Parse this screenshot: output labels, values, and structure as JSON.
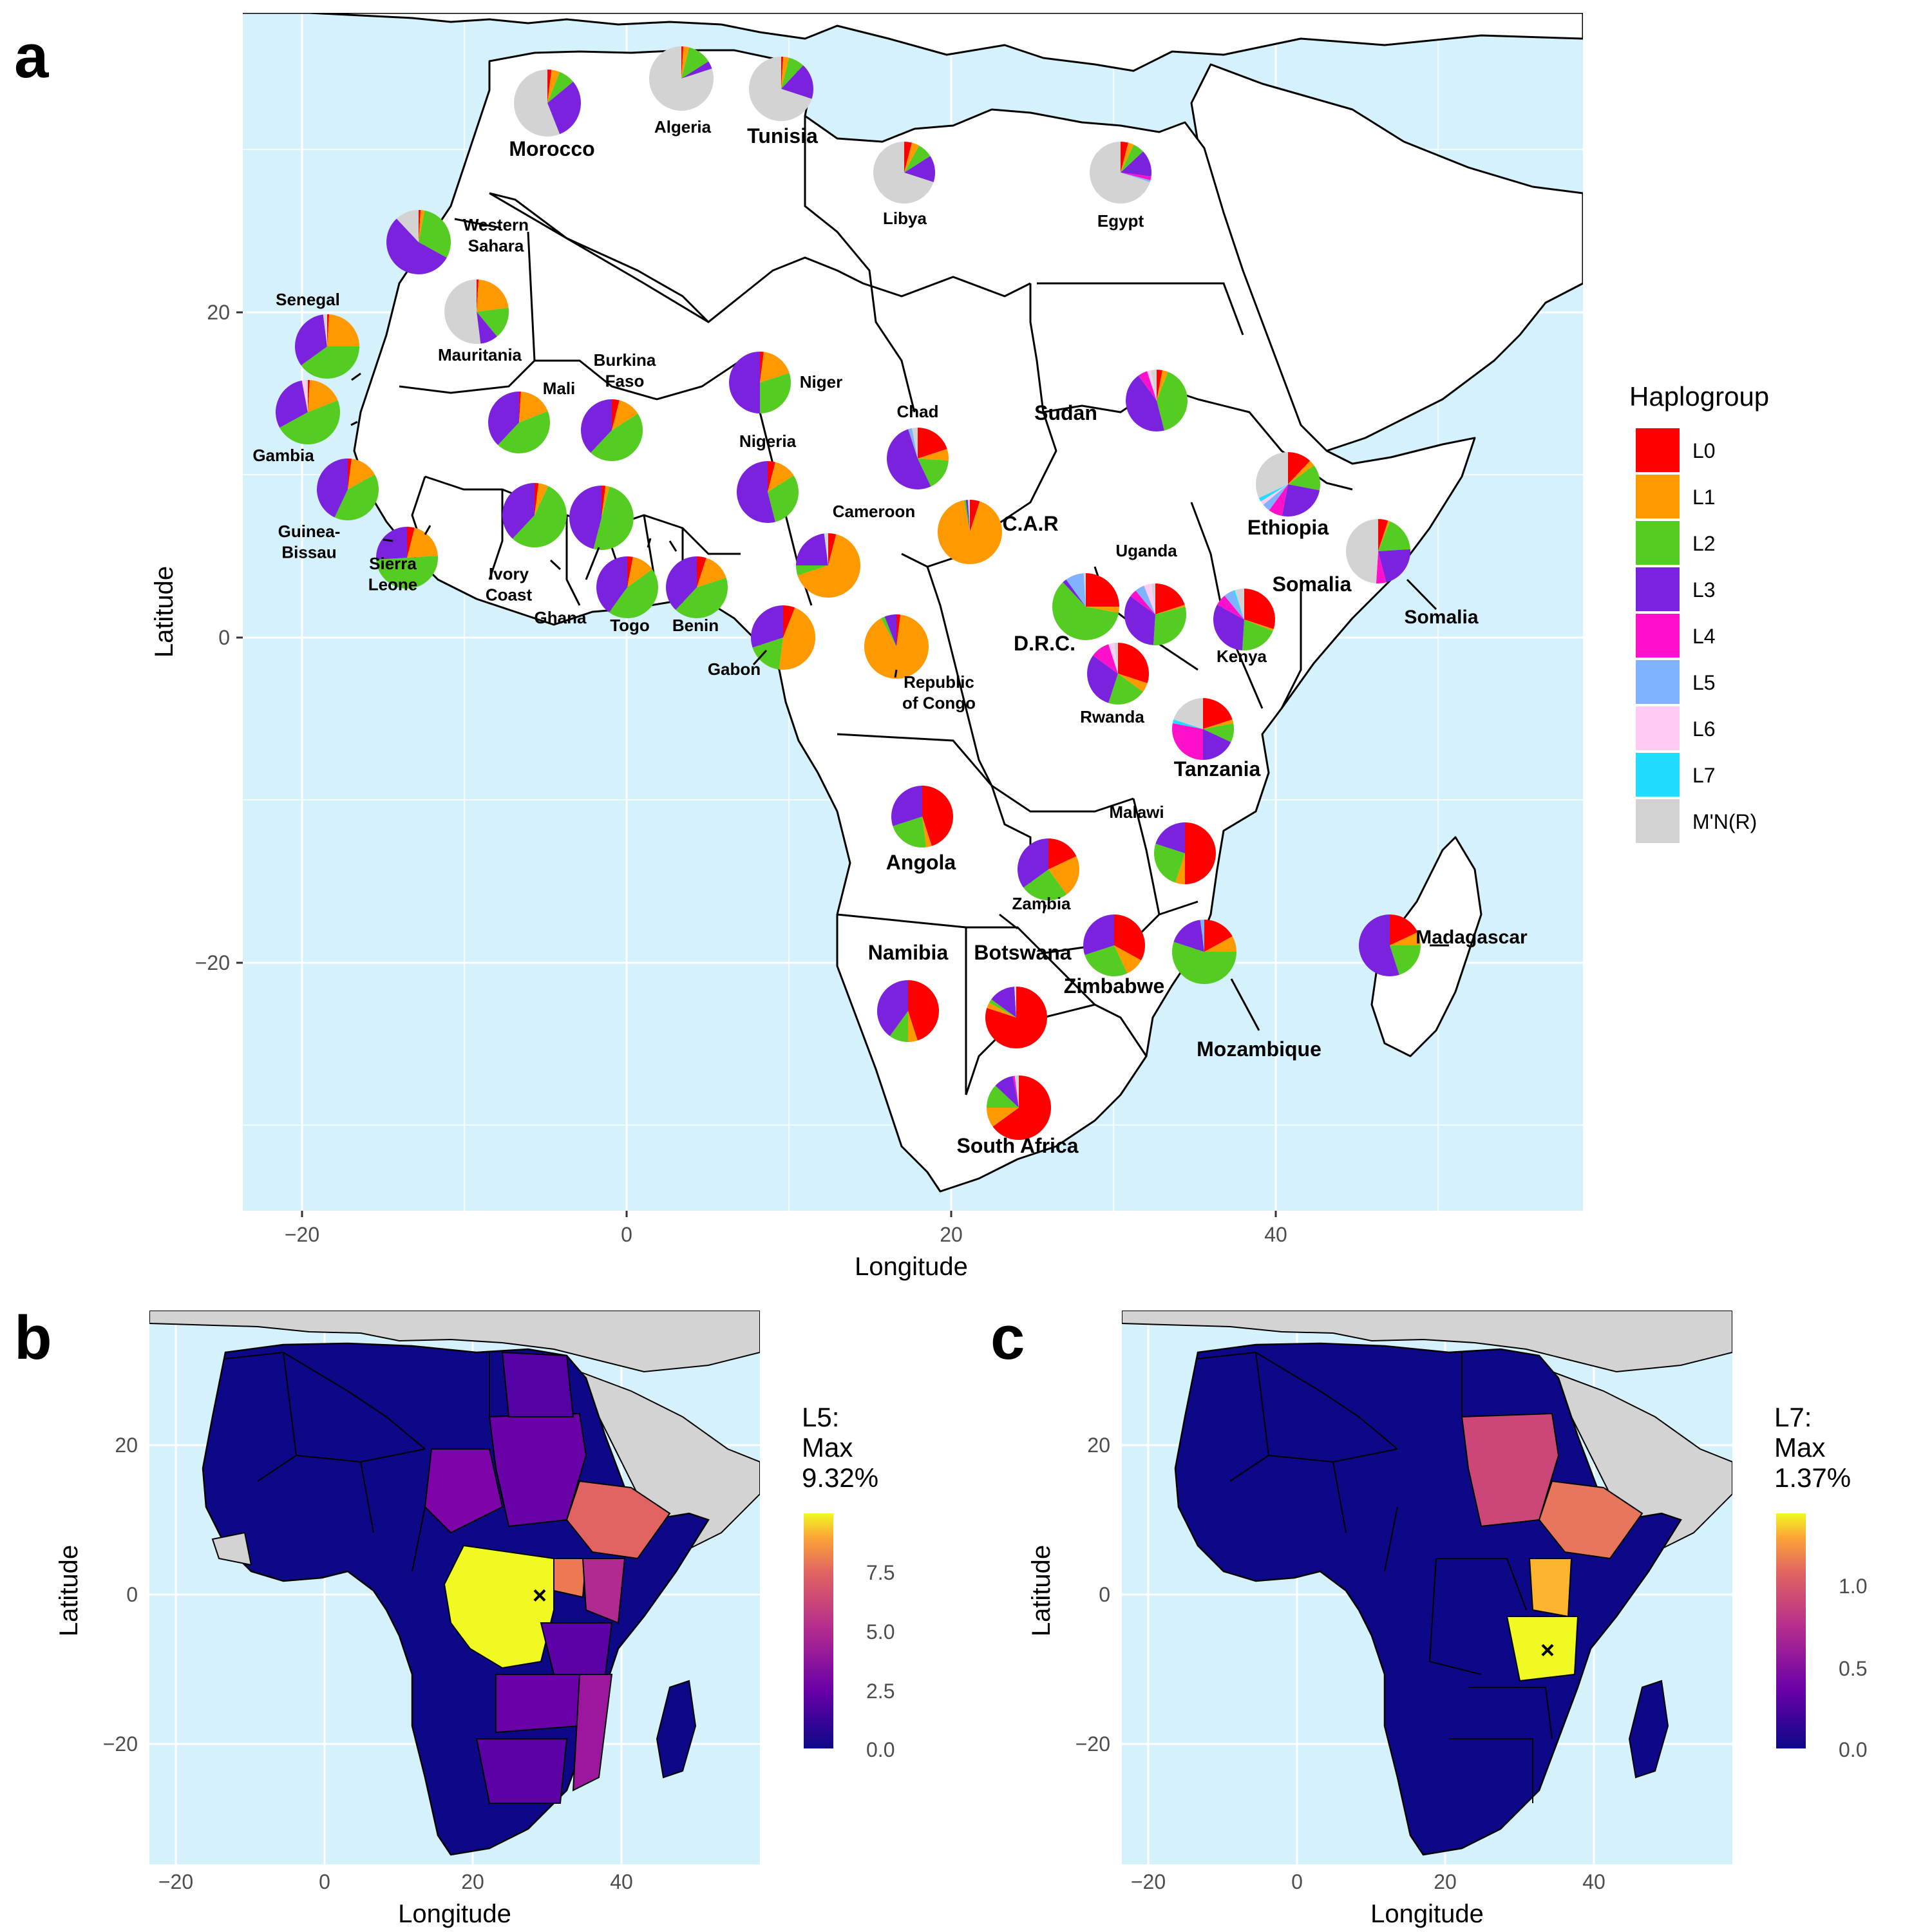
{
  "panels": {
    "a": {
      "letter": "a",
      "xlabel": "Longitude",
      "ylabel": "Latitude",
      "xticks": [
        "−20",
        "0",
        "20",
        "40"
      ],
      "yticks": [
        "20",
        "0",
        "−20"
      ]
    },
    "b": {
      "letter": "b",
      "xlabel": "Longitude",
      "ylabel": "Latitude",
      "xticks": [
        "−20",
        "0",
        "20",
        "40"
      ],
      "yticks": [
        "20",
        "0",
        "−20"
      ],
      "scale_title": [
        "L5:",
        "Max",
        "9.32%"
      ],
      "scale_ticks": [
        "7.5",
        "5.0",
        "2.5",
        "0.0"
      ],
      "max": 9.32
    },
    "c": {
      "letter": "c",
      "xlabel": "Longitude",
      "ylabel": "Latitude",
      "xticks": [
        "−20",
        "0",
        "20",
        "40"
      ],
      "yticks": [
        "20",
        "0",
        "−20"
      ],
      "scale_title": [
        "L7:",
        "Max",
        "1.37%"
      ],
      "scale_ticks": [
        "1.0",
        "0.5",
        "0.0"
      ],
      "max": 1.37
    }
  },
  "legend": {
    "title": "Haplogroup",
    "items": [
      {
        "label": "L0",
        "color": "#ff0000"
      },
      {
        "label": "L1",
        "color": "#ff9900"
      },
      {
        "label": "L2",
        "color": "#55cc22"
      },
      {
        "label": "L3",
        "color": "#7a22dd"
      },
      {
        "label": "L4",
        "color": "#ff11cc"
      },
      {
        "label": "L5",
        "color": "#80b3ff"
      },
      {
        "label": "L6",
        "color": "#ffccf5"
      },
      {
        "label": "L7",
        "color": "#22ddff"
      },
      {
        "label": "M'N(R)",
        "color": "#d3d3d3"
      }
    ]
  },
  "colors": {
    "ocean": "#d5f1fb",
    "land": "#ffffff",
    "nodata": "#d3d3d3"
  },
  "chart_data": {
    "type": "pie",
    "x_axis": "Longitude",
    "y_axis": "Latitude",
    "series_order": [
      "L0",
      "L1",
      "L2",
      "L3",
      "L4",
      "L5",
      "L6",
      "L7",
      "M'N(R)"
    ],
    "countries": [
      {
        "name": "Morocco",
        "lon": -4,
        "lat": 32,
        "fractions": [
          0.02,
          0.04,
          0.08,
          0.3,
          0,
          0,
          0,
          0,
          0.56
        ]
      },
      {
        "name": "Algeria",
        "lon": 3.5,
        "lat": 34.5,
        "fractions": [
          0.01,
          0.03,
          0.12,
          0.04,
          0,
          0,
          0,
          0,
          0.8
        ]
      },
      {
        "name": "Tunisia",
        "lon": 10,
        "lat": 34,
        "fractions": [
          0.01,
          0.03,
          0.08,
          0.18,
          0,
          0,
          0,
          0,
          0.7
        ]
      },
      {
        "name": "Libya",
        "lon": 17,
        "lat": 28,
        "fractions": [
          0.04,
          0.04,
          0.08,
          0.14,
          0,
          0,
          0,
          0,
          0.7
        ]
      },
      {
        "name": "Egypt",
        "lon": 30,
        "lat": 28,
        "fractions": [
          0.04,
          0.03,
          0.06,
          0.14,
          0.02,
          0.01,
          0,
          0,
          0.7
        ]
      },
      {
        "name": "Western Sahara",
        "lon": -13,
        "lat": 24.5,
        "fractions": [
          0.01,
          0.02,
          0.3,
          0.55,
          0,
          0,
          0,
          0,
          0.12
        ]
      },
      {
        "name": "Mauritania",
        "lon": -10,
        "lat": 20,
        "fractions": [
          0.01,
          0.22,
          0.16,
          0.09,
          0,
          0,
          0,
          0,
          0.52
        ]
      },
      {
        "name": "Senegal",
        "lon": -18.5,
        "lat": 18,
        "fractions": [
          0.01,
          0.24,
          0.4,
          0.33,
          0,
          0,
          0,
          0,
          0.02
        ]
      },
      {
        "name": "Mali",
        "lon": -6.5,
        "lat": 13.5,
        "fractions": [
          0.01,
          0.18,
          0.43,
          0.38,
          0,
          0,
          0,
          0,
          0
        ]
      },
      {
        "name": "Burkina Faso",
        "lon": -1,
        "lat": 13,
        "fractions": [
          0.04,
          0.12,
          0.46,
          0.38,
          0,
          0,
          0,
          0,
          0
        ]
      },
      {
        "name": "Niger",
        "lon": 8,
        "lat": 16,
        "fractions": [
          0.02,
          0.18,
          0.3,
          0.5,
          0,
          0,
          0,
          0,
          0
        ]
      },
      {
        "name": "Gambia",
        "lon": -19,
        "lat": 14,
        "fractions": [
          0.01,
          0.18,
          0.48,
          0.3,
          0,
          0,
          0.02,
          0,
          0.01
        ]
      },
      {
        "name": "Guinea-Bissau",
        "lon": -17,
        "lat": 9.5,
        "fractions": [
          0.02,
          0.15,
          0.4,
          0.43,
          0,
          0,
          0,
          0,
          0
        ]
      },
      {
        "name": "Sierra Leone",
        "lon": -13.5,
        "lat": 4.5,
        "fractions": [
          0.04,
          0.2,
          0.5,
          0.26,
          0,
          0,
          0,
          0,
          0
        ]
      },
      {
        "name": "Ivory Coast",
        "lon": -5.5,
        "lat": 7.5,
        "fractions": [
          0.02,
          0.05,
          0.55,
          0.38,
          0,
          0,
          0,
          0,
          0
        ]
      },
      {
        "name": "Ghana",
        "lon": -1.5,
        "lat": 7.5,
        "fractions": [
          0.02,
          0.02,
          0.5,
          0.46,
          0,
          0,
          0,
          0,
          0
        ]
      },
      {
        "name": "Togo",
        "lon": 0,
        "lat": 3,
        "fractions": [
          0.03,
          0.12,
          0.45,
          0.4,
          0,
          0,
          0,
          0,
          0
        ]
      },
      {
        "name": "Benin",
        "lon": 4,
        "lat": 3,
        "fractions": [
          0.05,
          0.15,
          0.42,
          0.38,
          0,
          0,
          0,
          0,
          0
        ]
      },
      {
        "name": "Nigeria",
        "lon": 8.5,
        "lat": 9,
        "fractions": [
          0.04,
          0.12,
          0.3,
          0.54,
          0,
          0,
          0,
          0,
          0
        ]
      },
      {
        "name": "Cameroon",
        "lon": 12.5,
        "lat": 4.5,
        "fractions": [
          0.04,
          0.66,
          0.05,
          0.23,
          0,
          0,
          0,
          0,
          0.02
        ]
      },
      {
        "name": "Chad",
        "lon": 18,
        "lat": 11,
        "fractions": [
          0.2,
          0.06,
          0.17,
          0.52,
          0,
          0.02,
          0,
          0,
          0.03
        ]
      },
      {
        "name": "C.A.R",
        "lon": 20.5,
        "lat": 6.5,
        "fractions": [
          0.05,
          0.92,
          0.01,
          0.01,
          0,
          0,
          0,
          0,
          0.01
        ]
      },
      {
        "name": "Sudan",
        "lon": 33,
        "lat": 14.5,
        "fractions": [
          0.03,
          0.03,
          0.4,
          0.44,
          0.05,
          0,
          0.02,
          0,
          0.03
        ]
      },
      {
        "name": "Ethiopia",
        "lon": 40,
        "lat": 9,
        "fractions": [
          0.12,
          0.03,
          0.13,
          0.25,
          0.07,
          0.04,
          0.02,
          0.02,
          0.32
        ]
      },
      {
        "name": "Somalia",
        "lon": 46.5,
        "lat": 5.5,
        "fractions": [
          0.05,
          0.01,
          0.18,
          0.22,
          0.05,
          0,
          0,
          0,
          0.49
        ]
      },
      {
        "name": "Uganda",
        "lon": 32.5,
        "lat": 1.5,
        "fractions": [
          0.2,
          0.01,
          0.3,
          0.34,
          0.04,
          0.05,
          0.04,
          0,
          0.02
        ]
      },
      {
        "name": "Kenya",
        "lon": 38,
        "lat": 1,
        "fractions": [
          0.3,
          0.01,
          0.2,
          0.32,
          0.06,
          0.05,
          0,
          0.01,
          0.05
        ]
      },
      {
        "name": "D.R.C.",
        "lon": 28,
        "lat": 2,
        "fractions": [
          0.25,
          0.03,
          0.6,
          0.02,
          0,
          0.09,
          0,
          0,
          0.01
        ]
      },
      {
        "name": "Rwanda",
        "lon": 29.5,
        "lat": -2,
        "fractions": [
          0.3,
          0.05,
          0.2,
          0.3,
          0.1,
          0,
          0.03,
          0,
          0.02
        ]
      },
      {
        "name": "Tanzania",
        "lon": 35.5,
        "lat": -5.5,
        "fractions": [
          0.2,
          0.02,
          0.1,
          0.18,
          0.28,
          0,
          0,
          0.02,
          0.2
        ]
      },
      {
        "name": "Gabon",
        "lon": 11.5,
        "lat": 0,
        "fractions": [
          0.06,
          0.46,
          0.18,
          0.3,
          0,
          0,
          0,
          0,
          0
        ]
      },
      {
        "name": "Republic of Congo",
        "lon": 16.5,
        "lat": 0,
        "fractions": [
          0.02,
          0.9,
          0.02,
          0.06,
          0,
          0,
          0,
          0,
          0
        ]
      },
      {
        "name": "Angola",
        "lon": 18,
        "lat": -11,
        "fractions": [
          0.45,
          0.03,
          0.22,
          0.3,
          0,
          0,
          0,
          0,
          0
        ]
      },
      {
        "name": "Zambia",
        "lon": 26,
        "lat": -14.5,
        "fractions": [
          0.18,
          0.22,
          0.25,
          0.35,
          0,
          0,
          0,
          0,
          0
        ]
      },
      {
        "name": "Malawi",
        "lon": 34.5,
        "lat": -13.5,
        "fractions": [
          0.5,
          0.05,
          0.25,
          0.2,
          0,
          0,
          0,
          0,
          0
        ]
      },
      {
        "name": "Zimbabwe",
        "lon": 30,
        "lat": -19,
        "fractions": [
          0.33,
          0.1,
          0.27,
          0.3,
          0,
          0,
          0,
          0,
          0
        ]
      },
      {
        "name": "Mozambique",
        "lon": 35,
        "lat": -19.5,
        "fractions": [
          0.17,
          0.08,
          0.55,
          0.18,
          0,
          0.02,
          0,
          0,
          0
        ]
      },
      {
        "name": "Madagascar",
        "lon": 47,
        "lat": -19,
        "fractions": [
          0.18,
          0.07,
          0.2,
          0.55,
          0,
          0,
          0,
          0,
          0
        ]
      },
      {
        "name": "Namibia",
        "lon": 17.5,
        "lat": -22.5,
        "fractions": [
          0.45,
          0.05,
          0.1,
          0.4,
          0,
          0,
          0,
          0,
          0
        ]
      },
      {
        "name": "Botswana",
        "lon": 24,
        "lat": -23,
        "fractions": [
          0.8,
          0.03,
          0.02,
          0.14,
          0,
          0,
          0,
          0,
          0.01
        ]
      },
      {
        "name": "South Africa",
        "lon": 24.5,
        "lat": -28.5,
        "fractions": [
          0.65,
          0.1,
          0.12,
          0.1,
          0.01,
          0,
          0,
          0,
          0.02
        ]
      }
    ]
  }
}
